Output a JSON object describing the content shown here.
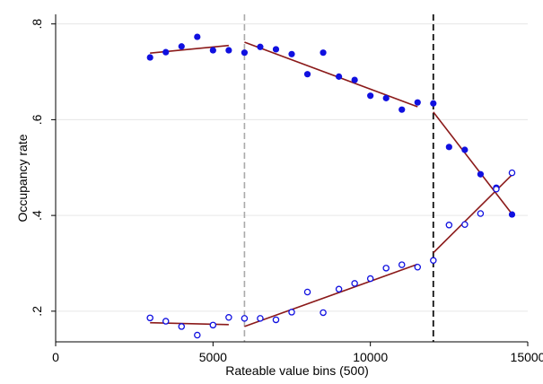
{
  "chart_data": {
    "type": "scatter",
    "title": "",
    "xlabel": "Rateable value bins (500)",
    "ylabel": "Occupancy rate",
    "xlim": [
      0,
      15000
    ],
    "ylim": [
      0.136,
      0.82
    ],
    "x_ticks": [
      {
        "value": 0,
        "label": "0"
      },
      {
        "value": 5000,
        "label": "5000"
      },
      {
        "value": 10000,
        "label": "10000"
      },
      {
        "value": 15000,
        "label": "15000"
      }
    ],
    "y_ticks": [
      {
        "value": 0.2,
        "label": ".2"
      },
      {
        "value": 0.4,
        "label": ".4"
      },
      {
        "value": 0.6,
        "label": ".6"
      },
      {
        "value": 0.8,
        "label": ".8"
      }
    ],
    "grid": "horizontal",
    "vlines": [
      {
        "x": 6000,
        "style": "dashed",
        "color": "#aaaaaa"
      },
      {
        "x": 12000,
        "style": "dashed",
        "color": "#111111"
      }
    ],
    "colors": {
      "points": "#1010e0",
      "fit": "#8b1a1a",
      "grid": "#e6e6e6"
    },
    "series": [
      {
        "marker": "filled",
        "x": [
          3000,
          3500,
          4000,
          4500,
          5000,
          5500,
          6000,
          6500,
          7000,
          7500,
          8000,
          8500,
          9000,
          9500,
          10000,
          10500,
          11000,
          11500,
          12000,
          12500,
          13000,
          13500,
          14000,
          14500
        ],
        "y": [
          0.73,
          0.741,
          0.753,
          0.773,
          0.745,
          0.745,
          0.74,
          0.752,
          0.747,
          0.737,
          0.695,
          0.74,
          0.69,
          0.683,
          0.65,
          0.645,
          0.621,
          0.636,
          0.634,
          0.543,
          0.537,
          0.486,
          0.458,
          0.402
        ]
      },
      {
        "marker": "hollow",
        "x": [
          3000,
          3500,
          4000,
          4500,
          5000,
          5500,
          6000,
          6500,
          7000,
          7500,
          8000,
          8500,
          9000,
          9500,
          10000,
          10500,
          11000,
          11500,
          12000,
          12500,
          13000,
          13500,
          14000,
          14500
        ],
        "y": [
          0.186,
          0.179,
          0.168,
          0.15,
          0.171,
          0.187,
          0.185,
          0.185,
          0.182,
          0.198,
          0.24,
          0.197,
          0.246,
          0.258,
          0.268,
          0.29,
          0.297,
          0.292,
          0.306,
          0.38,
          0.381,
          0.404,
          0.455,
          0.489
        ]
      }
    ],
    "fit_lines": [
      {
        "x": [
          3000,
          5500
        ],
        "y": [
          0.739,
          0.755
        ]
      },
      {
        "x": [
          6000,
          11500
        ],
        "y": [
          0.762,
          0.627
        ]
      },
      {
        "x": [
          12000,
          14500
        ],
        "y": [
          0.616,
          0.403
        ]
      },
      {
        "x": [
          3000,
          5500
        ],
        "y": [
          0.176,
          0.172
        ]
      },
      {
        "x": [
          6000,
          11500
        ],
        "y": [
          0.168,
          0.298
        ]
      },
      {
        "x": [
          12000,
          14500
        ],
        "y": [
          0.322,
          0.485
        ]
      }
    ]
  }
}
